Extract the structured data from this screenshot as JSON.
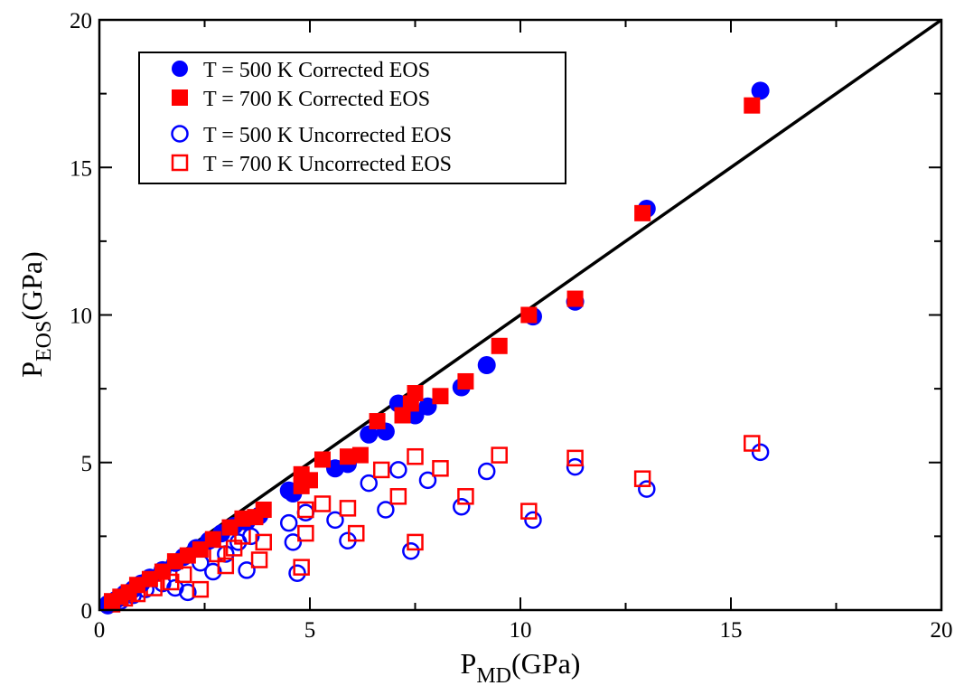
{
  "chart_data": {
    "type": "scatter",
    "title": "",
    "xlabel": {
      "main": "P",
      "sub": "MD",
      "tail": "(GPa)"
    },
    "ylabel": {
      "main": "P",
      "sub": "EOS",
      "tail": "(GPa)"
    },
    "xlim": [
      0,
      20
    ],
    "ylim": [
      0,
      20
    ],
    "x_ticks": [
      0,
      5,
      10,
      15,
      20
    ],
    "y_ticks": [
      0,
      5,
      10,
      15,
      20
    ],
    "x_tick_labels": [
      "0",
      "5",
      "10",
      "15",
      "20"
    ],
    "y_tick_labels": [
      "0",
      "5",
      "10",
      "15",
      "20"
    ],
    "grid": false,
    "legend_position": "top-left",
    "reference_line": {
      "x": [
        0,
        20
      ],
      "y": [
        0,
        20
      ],
      "color": "#000000"
    },
    "series": [
      {
        "name": "T = 500 K Corrected EOS",
        "marker": "circle",
        "filled": true,
        "color": "#0000ff",
        "points": [
          [
            0.2,
            0.2
          ],
          [
            0.4,
            0.35
          ],
          [
            0.6,
            0.55
          ],
          [
            0.8,
            0.7
          ],
          [
            1.0,
            0.9
          ],
          [
            1.2,
            1.1
          ],
          [
            1.5,
            1.35
          ],
          [
            1.8,
            1.6
          ],
          [
            2.0,
            1.8
          ],
          [
            2.3,
            2.1
          ],
          [
            2.6,
            2.35
          ],
          [
            2.9,
            2.6
          ],
          [
            3.2,
            2.85
          ],
          [
            3.5,
            3.0
          ],
          [
            3.8,
            3.2
          ],
          [
            4.5,
            4.05
          ],
          [
            4.6,
            3.95
          ],
          [
            4.9,
            4.4
          ],
          [
            5.6,
            4.8
          ],
          [
            5.9,
            4.95
          ],
          [
            6.4,
            5.95
          ],
          [
            6.8,
            6.05
          ],
          [
            7.1,
            7.0
          ],
          [
            7.5,
            6.6
          ],
          [
            7.8,
            6.9
          ],
          [
            8.6,
            7.55
          ],
          [
            9.2,
            8.3
          ],
          [
            10.3,
            9.95
          ],
          [
            11.3,
            10.45
          ],
          [
            13.0,
            13.6
          ],
          [
            15.7,
            17.6
          ]
        ]
      },
      {
        "name": "T = 700 K Corrected EOS",
        "marker": "square",
        "filled": true,
        "color": "#ff0000",
        "points": [
          [
            0.3,
            0.3
          ],
          [
            0.5,
            0.45
          ],
          [
            0.7,
            0.6
          ],
          [
            0.9,
            0.85
          ],
          [
            1.2,
            1.05
          ],
          [
            1.5,
            1.3
          ],
          [
            1.8,
            1.65
          ],
          [
            2.1,
            1.85
          ],
          [
            2.4,
            2.05
          ],
          [
            2.7,
            2.4
          ],
          [
            3.1,
            2.8
          ],
          [
            3.4,
            3.1
          ],
          [
            3.7,
            3.15
          ],
          [
            3.9,
            3.4
          ],
          [
            4.8,
            4.2
          ],
          [
            4.8,
            4.6
          ],
          [
            5.0,
            4.4
          ],
          [
            5.3,
            5.1
          ],
          [
            5.9,
            5.2
          ],
          [
            6.2,
            5.25
          ],
          [
            6.6,
            6.4
          ],
          [
            7.2,
            6.6
          ],
          [
            7.4,
            7.0
          ],
          [
            7.5,
            7.35
          ],
          [
            8.1,
            7.25
          ],
          [
            8.7,
            7.75
          ],
          [
            9.5,
            8.95
          ],
          [
            10.2,
            10.0
          ],
          [
            11.3,
            10.55
          ],
          [
            12.9,
            13.45
          ],
          [
            15.5,
            17.1
          ]
        ]
      },
      {
        "name": "T = 500 K Uncorrected EOS",
        "marker": "circle",
        "filled": false,
        "color": "#0000ff",
        "points": [
          [
            0.2,
            0.15
          ],
          [
            0.5,
            0.3
          ],
          [
            0.8,
            0.5
          ],
          [
            1.1,
            0.7
          ],
          [
            1.5,
            0.9
          ],
          [
            1.8,
            0.75
          ],
          [
            2.1,
            0.6
          ],
          [
            2.4,
            1.6
          ],
          [
            2.7,
            1.3
          ],
          [
            3.0,
            1.9
          ],
          [
            3.3,
            2.3
          ],
          [
            3.5,
            1.35
          ],
          [
            3.6,
            2.5
          ],
          [
            4.5,
            2.95
          ],
          [
            4.6,
            2.3
          ],
          [
            4.7,
            1.25
          ],
          [
            4.9,
            3.3
          ],
          [
            5.6,
            3.05
          ],
          [
            5.9,
            2.35
          ],
          [
            6.4,
            4.3
          ],
          [
            6.8,
            3.4
          ],
          [
            7.1,
            4.75
          ],
          [
            7.4,
            2.0
          ],
          [
            7.8,
            4.4
          ],
          [
            8.6,
            3.5
          ],
          [
            9.2,
            4.7
          ],
          [
            10.3,
            3.05
          ],
          [
            11.3,
            4.85
          ],
          [
            13.0,
            4.1
          ],
          [
            15.7,
            5.35
          ]
        ]
      },
      {
        "name": "T = 700 K Uncorrected EOS",
        "marker": "square",
        "filled": false,
        "color": "#ff0000",
        "points": [
          [
            0.3,
            0.2
          ],
          [
            0.6,
            0.4
          ],
          [
            0.9,
            0.55
          ],
          [
            1.3,
            0.75
          ],
          [
            1.7,
            0.95
          ],
          [
            2.0,
            1.2
          ],
          [
            2.4,
            0.7
          ],
          [
            2.8,
            1.9
          ],
          [
            3.0,
            1.5
          ],
          [
            3.2,
            2.1
          ],
          [
            3.4,
            2.5
          ],
          [
            3.8,
            1.7
          ],
          [
            3.9,
            2.3
          ],
          [
            4.8,
            1.45
          ],
          [
            4.9,
            2.6
          ],
          [
            4.9,
            3.4
          ],
          [
            5.3,
            3.6
          ],
          [
            5.9,
            3.45
          ],
          [
            6.1,
            2.6
          ],
          [
            6.7,
            4.75
          ],
          [
            7.1,
            3.85
          ],
          [
            7.5,
            5.2
          ],
          [
            7.5,
            2.3
          ],
          [
            8.1,
            4.8
          ],
          [
            8.7,
            3.85
          ],
          [
            9.5,
            5.25
          ],
          [
            10.2,
            3.35
          ],
          [
            11.3,
            5.15
          ],
          [
            12.9,
            4.45
          ],
          [
            15.5,
            5.65
          ]
        ]
      }
    ]
  }
}
